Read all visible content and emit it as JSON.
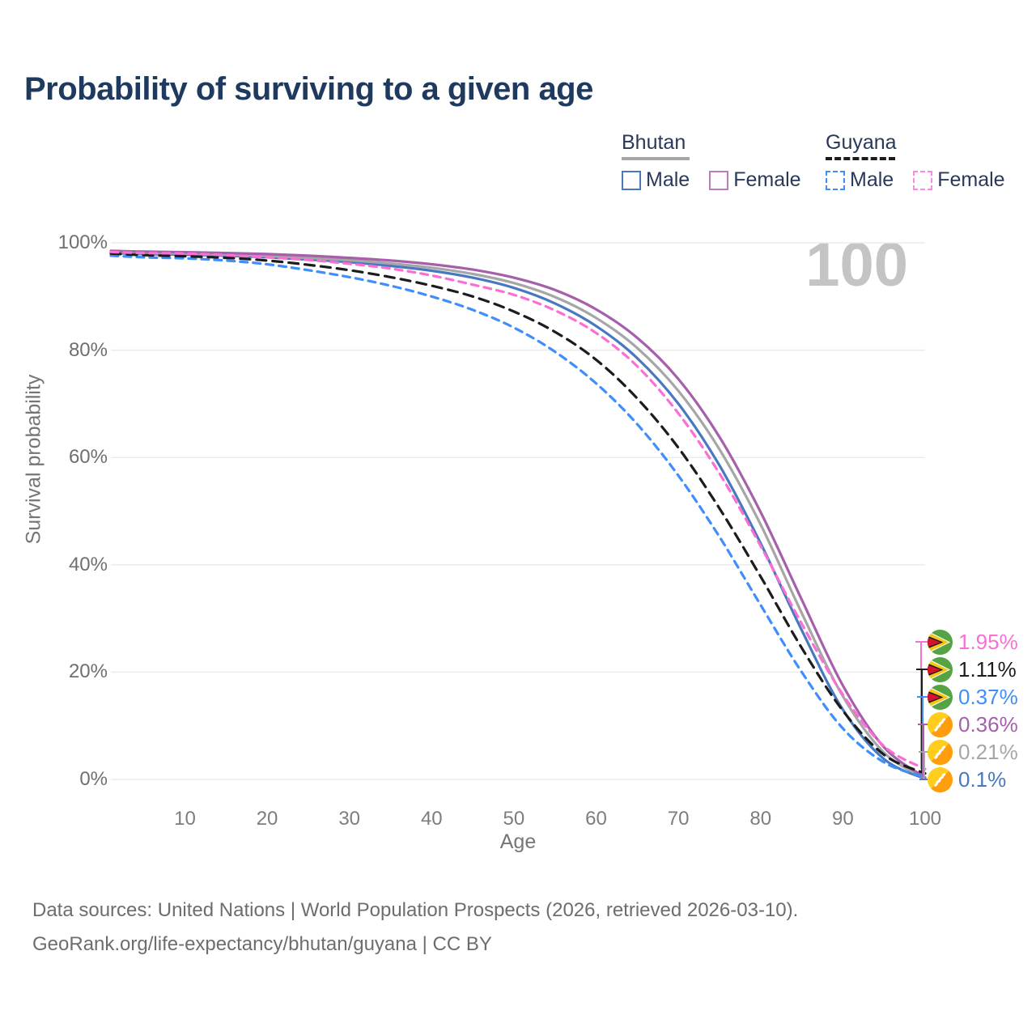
{
  "title": "Probability of surviving to a given age",
  "watermark": "100",
  "legend": {
    "groups": [
      {
        "label": "Bhutan",
        "underline_color": "#a6a6a6",
        "underline_style": "solid",
        "items": [
          {
            "label": "Male",
            "color": "#4878c0",
            "dashed": false
          },
          {
            "label": "Female",
            "color": "#bd7cb8",
            "dashed": false
          }
        ]
      },
      {
        "label": "Guyana",
        "underline_color": "#1c1c1c",
        "underline_style": "dashed",
        "items": [
          {
            "label": "Male",
            "color": "#3f8efc",
            "dashed": true
          },
          {
            "label": "Female",
            "color": "#fc8ade",
            "dashed": true
          }
        ]
      }
    ]
  },
  "chart_data": {
    "type": "line",
    "title": "Probability of surviving to a given age",
    "xlabel": "Age",
    "ylabel": "Survival probability",
    "xlim": [
      1,
      100
    ],
    "ylim": [
      0,
      100
    ],
    "x_ticks": [
      10,
      20,
      30,
      40,
      50,
      60,
      70,
      80,
      90,
      100
    ],
    "y_ticks": [
      0,
      20,
      40,
      60,
      80,
      100
    ],
    "y_tick_suffix": "%",
    "grid": "horizontal",
    "legend_position": "top-right",
    "ages": [
      1,
      5,
      10,
      15,
      20,
      25,
      30,
      35,
      40,
      45,
      50,
      55,
      60,
      65,
      70,
      75,
      80,
      85,
      90,
      95,
      100
    ],
    "series": [
      {
        "name": "Guyana Female",
        "country": "Guyana",
        "sex": "Female",
        "color": "#fb6fd3",
        "dash": true,
        "flag": "guyana",
        "end_label": "1.95%",
        "values": [
          98.3,
          98.1,
          98.0,
          97.7,
          97.3,
          96.8,
          96.1,
          95.2,
          93.9,
          92.2,
          90.3,
          87.4,
          83.2,
          77.0,
          68.2,
          57.0,
          43.5,
          29.0,
          15.8,
          6.2,
          1.95
        ]
      },
      {
        "name": "Guyana Both sexes",
        "country": "Guyana",
        "sex": "Both",
        "color": "#1c1c1c",
        "dash": true,
        "flag": "guyana",
        "end_label": "1.11%",
        "values": [
          98.0,
          97.7,
          97.5,
          97.2,
          96.7,
          95.9,
          94.9,
          93.6,
          92.0,
          90.0,
          87.2,
          83.4,
          78.2,
          71.0,
          61.8,
          50.5,
          37.8,
          24.5,
          12.8,
          4.6,
          1.11
        ]
      },
      {
        "name": "Guyana Male",
        "country": "Guyana",
        "sex": "Male",
        "color": "#3f8efc",
        "dash": true,
        "flag": "guyana",
        "end_label": "0.37%",
        "values": [
          97.6,
          97.3,
          97.1,
          96.7,
          96.0,
          94.9,
          93.6,
          92.0,
          90.0,
          87.5,
          84.2,
          79.7,
          73.8,
          66.2,
          56.6,
          45.2,
          32.5,
          20.0,
          9.5,
          3.2,
          0.37
        ]
      },
      {
        "name": "Bhutan Female",
        "country": "Bhutan",
        "sex": "Female",
        "color": "#a55fab",
        "dash": false,
        "flag": "bhutan",
        "end_label": "0.36%",
        "values": [
          98.5,
          98.35,
          98.25,
          98.1,
          97.9,
          97.6,
          97.2,
          96.7,
          96.0,
          95.0,
          93.5,
          91.2,
          87.6,
          82.3,
          74.6,
          63.8,
          49.8,
          33.5,
          17.5,
          6.0,
          0.36
        ]
      },
      {
        "name": "Bhutan Both sexes",
        "country": "Bhutan",
        "sex": "Both",
        "color": "#a6a6a6",
        "dash": false,
        "flag": "bhutan",
        "end_label": "0.21%",
        "values": [
          98.3,
          98.1,
          98.0,
          97.8,
          97.55,
          97.2,
          96.75,
          96.15,
          95.35,
          94.2,
          92.5,
          89.9,
          86.0,
          80.4,
          72.4,
          61.5,
          47.5,
          31.0,
          15.5,
          5.0,
          0.21
        ]
      },
      {
        "name": "Bhutan Male",
        "country": "Bhutan",
        "sex": "Male",
        "color": "#4878c0",
        "dash": false,
        "flag": "bhutan",
        "end_label": "0.1%",
        "values": [
          98.1,
          97.9,
          97.8,
          97.6,
          97.3,
          96.9,
          96.4,
          95.7,
          94.8,
          93.5,
          91.6,
          88.7,
          84.5,
          78.5,
          70.0,
          58.5,
          44.0,
          27.8,
          13.0,
          3.8,
          0.1
        ]
      }
    ]
  },
  "footer": {
    "line1": "Data sources: United Nations | World Population Prospects (2026, retrieved 2026-03-10).",
    "line2": "GeoRank.org/life-expectancy/bhutan/guyana | CC BY"
  }
}
